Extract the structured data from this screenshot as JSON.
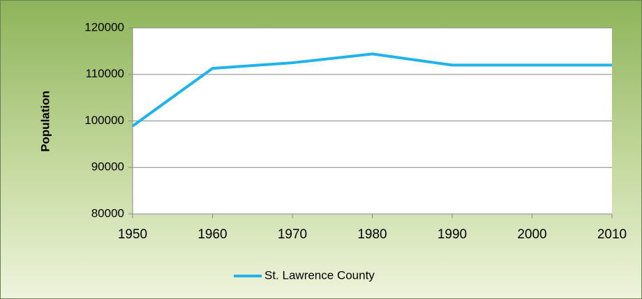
{
  "chart_data": {
    "type": "line",
    "x": [
      1950,
      1960,
      1970,
      1980,
      1990,
      2000,
      2010
    ],
    "series": [
      {
        "name": "St. Lawrence County",
        "color": "#1fb3ea",
        "values": [
          98900,
          111300,
          112500,
          114400,
          112000,
          112000,
          112000
        ]
      }
    ],
    "y_label": "Population",
    "xlim": [
      1950,
      2010
    ],
    "xticks": [
      1950,
      1960,
      1970,
      1980,
      1990,
      2000,
      2010
    ],
    "ylim": [
      80000,
      120000
    ],
    "yticks": [
      80000,
      90000,
      100000,
      110000,
      120000
    ],
    "grid": true,
    "legend": "bottom"
  }
}
